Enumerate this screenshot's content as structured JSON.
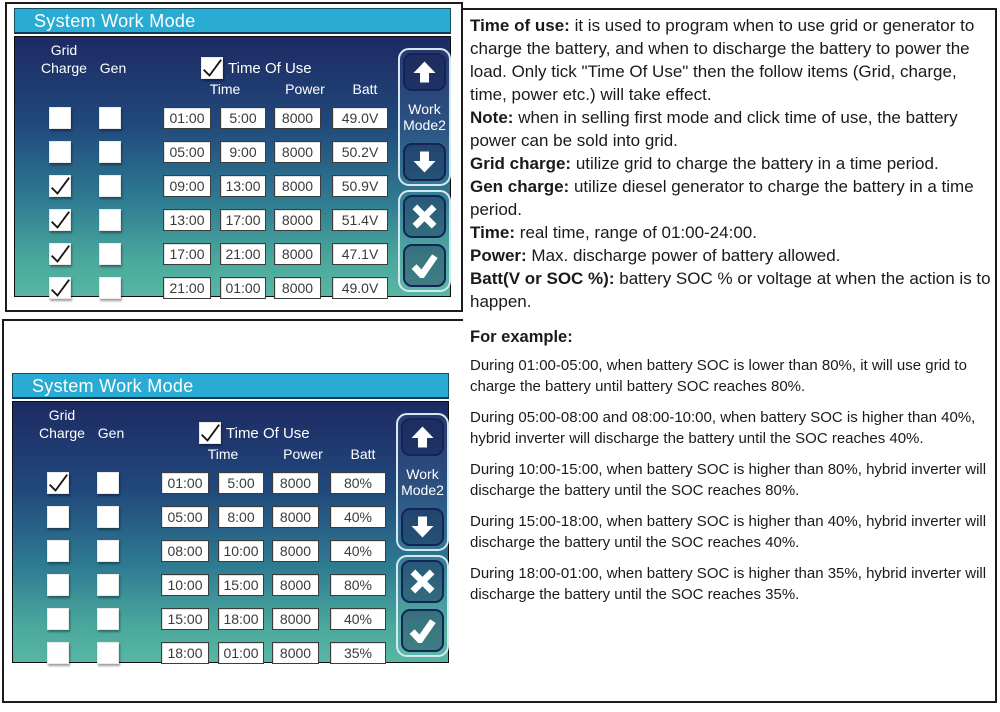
{
  "colors": {
    "header_bar": "#29abd4",
    "panel_top": "#1d2a63",
    "panel_upper": "#21497c",
    "panel_mid": "#2f7d92",
    "panel_lower": "#4aa89c",
    "panel_bottom": "#58b6a4",
    "stack_border": "#d6e9f0"
  },
  "panels": [
    {
      "title": "System Work Mode",
      "tou_checked": true,
      "labels": {
        "grid": [
          "Grid",
          "Charge"
        ],
        "gen": "Gen",
        "tou": "Time Of Use",
        "time": "Time",
        "power": "Power",
        "batt": "Batt",
        "work": [
          "Work",
          "Mode2"
        ]
      },
      "rows": [
        {
          "grid": false,
          "gen": false,
          "start": "01:00",
          "end": "5:00",
          "power": "8000",
          "batt": "49.0V"
        },
        {
          "grid": false,
          "gen": false,
          "start": "05:00",
          "end": "9:00",
          "power": "8000",
          "batt": "50.2V"
        },
        {
          "grid": true,
          "gen": false,
          "start": "09:00",
          "end": "13:00",
          "power": "8000",
          "batt": "50.9V"
        },
        {
          "grid": true,
          "gen": false,
          "start": "13:00",
          "end": "17:00",
          "power": "8000",
          "batt": "51.4V"
        },
        {
          "grid": true,
          "gen": false,
          "start": "17:00",
          "end": "21:00",
          "power": "8000",
          "batt": "47.1V"
        },
        {
          "grid": true,
          "gen": false,
          "start": "21:00",
          "end": "01:00",
          "power": "8000",
          "batt": "49.0V"
        }
      ]
    },
    {
      "title": "System Work Mode",
      "tou_checked": true,
      "labels": {
        "grid": [
          "Grid",
          "Charge"
        ],
        "gen": "Gen",
        "tou": "Time Of Use",
        "time": "Time",
        "power": "Power",
        "batt": "Batt",
        "work": [
          "Work",
          "Mode2"
        ]
      },
      "rows": [
        {
          "grid": true,
          "gen": false,
          "start": "01:00",
          "end": "5:00",
          "power": "8000",
          "batt": "80%"
        },
        {
          "grid": false,
          "gen": false,
          "start": "05:00",
          "end": "8:00",
          "power": "8000",
          "batt": "40%"
        },
        {
          "grid": false,
          "gen": false,
          "start": "08:00",
          "end": "10:00",
          "power": "8000",
          "batt": "40%"
        },
        {
          "grid": false,
          "gen": false,
          "start": "10:00",
          "end": "15:00",
          "power": "8000",
          "batt": "80%"
        },
        {
          "grid": false,
          "gen": false,
          "start": "15:00",
          "end": "18:00",
          "power": "8000",
          "batt": "40%"
        },
        {
          "grid": false,
          "gen": false,
          "start": "18:00",
          "end": "01:00",
          "power": "8000",
          "batt": "35%"
        }
      ]
    }
  ],
  "description": {
    "paragraphs": [
      {
        "label": "Time of use:",
        "text": "it is used to program when to use grid or generator to charge the battery, and when to discharge the battery to power the load. Only tick \"Time Of Use\" then the follow items (Grid, charge, time, power etc.) will take effect."
      },
      {
        "label": "Note:",
        "text": "when in selling first mode and click time of use, the battery power can be sold into grid."
      },
      {
        "label": "Grid charge:",
        "text": "utilize grid to charge the battery in a time period."
      },
      {
        "label": "Gen charge:",
        "text": "utilize diesel generator to charge the battery in a time period."
      },
      {
        "label": "Time:",
        "text": "real time, range of 01:00-24:00."
      },
      {
        "label": "Power:",
        "text": "Max. discharge power of battery allowed."
      },
      {
        "label": "Batt(V or SOC %):",
        "text": "battery SOC % or voltage at when the action is to happen."
      }
    ]
  },
  "example": {
    "heading": "For example:",
    "paragraphs": [
      "During 01:00-05:00, when battery SOC is lower than 80%, it will use grid to charge the battery until battery SOC reaches 80%.",
      "During 05:00-08:00 and 08:00-10:00, when battery SOC is higher than 40%, hybrid inverter will discharge the battery until the SOC reaches 40%.",
      "During 10:00-15:00, when battery SOC is higher than 80%, hybrid inverter will discharge the battery until the SOC reaches 80%.",
      "During 15:00-18:00, when battery SOC is higher than 40%, hybrid inverter will discharge the battery until the SOC reaches 40%.",
      "During 18:00-01:00, when battery SOC is higher than 35%, hybrid inverter will discharge the battery until the SOC reaches 35%."
    ]
  }
}
